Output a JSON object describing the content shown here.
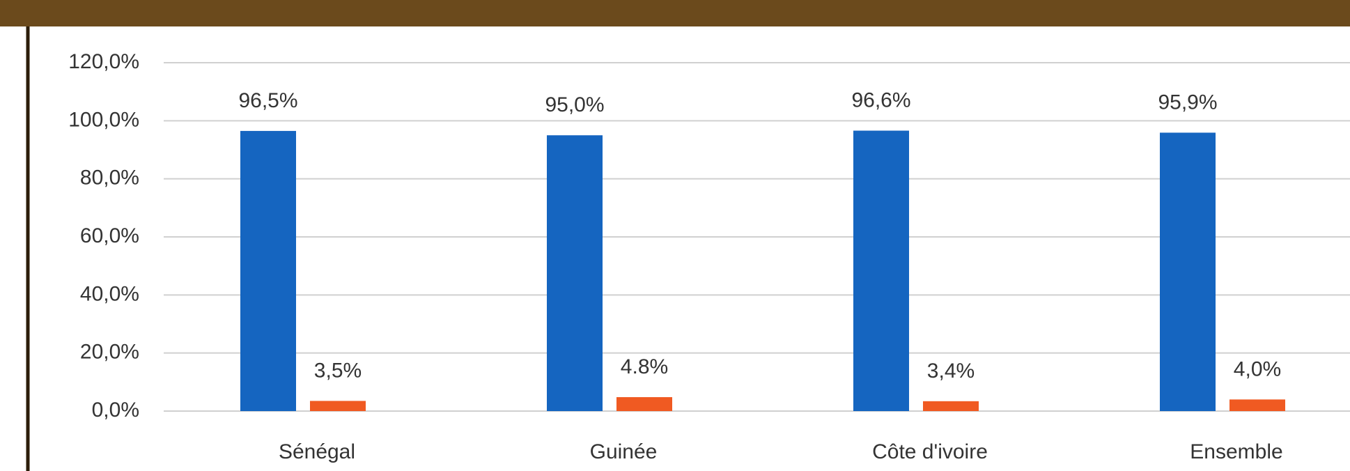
{
  "chart_data": {
    "type": "bar",
    "categories": [
      "Sénégal",
      "Guinée",
      "Côte d'ivoire",
      "Ensemble"
    ],
    "series": [
      {
        "color": "#1565c0",
        "values": [
          96.5,
          95.0,
          96.6,
          95.9
        ],
        "value_labels": [
          "96,5%",
          "95,0%",
          "96,6%",
          "95,9%"
        ]
      },
      {
        "color": "#f05a22",
        "values": [
          3.5,
          4.8,
          3.4,
          4.0
        ],
        "value_labels": [
          "3,5%",
          "4.8%",
          "3,4%",
          "4,0%"
        ]
      }
    ],
    "ylim": [
      0,
      120
    ],
    "yticks": [
      {
        "value": 0,
        "label": "0,0%"
      },
      {
        "value": 20,
        "label": "20,0%"
      },
      {
        "value": 40,
        "label": "40,0%"
      },
      {
        "value": 60,
        "label": "60,0%"
      },
      {
        "value": 80,
        "label": "80,0%"
      },
      {
        "value": 100,
        "label": "100,0%"
      },
      {
        "value": 120,
        "label": "120,0%"
      }
    ],
    "grid": true
  }
}
